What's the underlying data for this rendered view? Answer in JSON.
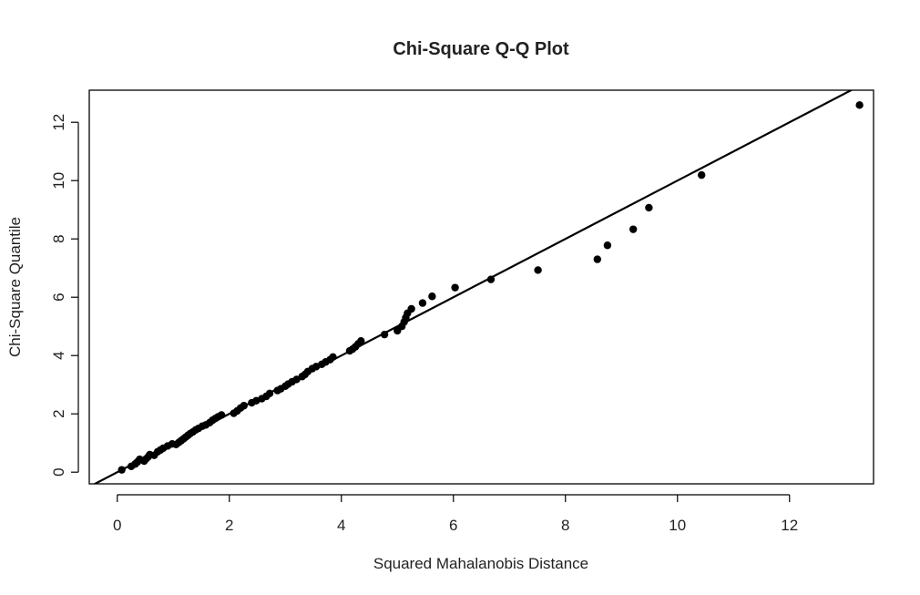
{
  "chart_data": {
    "type": "scatter",
    "title": "Chi-Square Q-Q Plot",
    "xlabel": "Squared Mahalanobis Distance",
    "ylabel": "Chi-Square Quantile",
    "xlim": [
      -0.5,
      13.5
    ],
    "ylim": [
      -0.4,
      13.1
    ],
    "xticks": [
      0,
      2,
      4,
      6,
      8,
      10,
      12
    ],
    "yticks": [
      0,
      2,
      4,
      6,
      8,
      10,
      12
    ],
    "grid": false,
    "legend": "none",
    "reference_line": {
      "slope": 1,
      "intercept": 0
    },
    "points": {
      "x": [
        0.08,
        0.25,
        0.32,
        0.36,
        0.4,
        0.48,
        0.51,
        0.55,
        0.58,
        0.66,
        0.72,
        0.77,
        0.82,
        0.9,
        0.98,
        1.05,
        1.1,
        1.14,
        1.18,
        1.22,
        1.26,
        1.3,
        1.35,
        1.4,
        1.45,
        1.52,
        1.58,
        1.65,
        1.7,
        1.75,
        1.8,
        1.86,
        2.08,
        2.14,
        2.2,
        2.26,
        2.4,
        2.48,
        2.58,
        2.66,
        2.72,
        2.86,
        2.92,
        3.0,
        3.05,
        3.12,
        3.2,
        3.3,
        3.35,
        3.4,
        3.48,
        3.55,
        3.65,
        3.72,
        3.8,
        3.85,
        4.15,
        4.2,
        4.25,
        4.3,
        4.35,
        4.77,
        5.0,
        5.08,
        5.12,
        5.15,
        5.18,
        5.25,
        5.45,
        5.62,
        6.03,
        6.67,
        7.51,
        8.57,
        8.75,
        9.21,
        9.49,
        10.43,
        13.25
      ],
      "y": [
        0.08,
        0.2,
        0.28,
        0.35,
        0.44,
        0.38,
        0.45,
        0.52,
        0.6,
        0.58,
        0.7,
        0.76,
        0.82,
        0.9,
        0.97,
        0.95,
        1.02,
        1.08,
        1.14,
        1.2,
        1.26,
        1.32,
        1.38,
        1.45,
        1.5,
        1.58,
        1.62,
        1.7,
        1.78,
        1.84,
        1.9,
        1.96,
        2.02,
        2.1,
        2.2,
        2.28,
        2.38,
        2.45,
        2.52,
        2.6,
        2.7,
        2.8,
        2.86,
        2.95,
        3.02,
        3.1,
        3.18,
        3.28,
        3.35,
        3.45,
        3.55,
        3.62,
        3.7,
        3.78,
        3.86,
        3.95,
        4.16,
        4.22,
        4.3,
        4.4,
        4.5,
        4.72,
        4.85,
        5.0,
        5.15,
        5.3,
        5.45,
        5.6,
        5.8,
        6.03,
        6.33,
        6.61,
        6.93,
        7.3,
        7.78,
        8.33,
        9.07,
        10.19,
        12.59
      ]
    },
    "colors": {
      "points": "#000000",
      "line": "#000000",
      "frame": "#000000"
    }
  }
}
